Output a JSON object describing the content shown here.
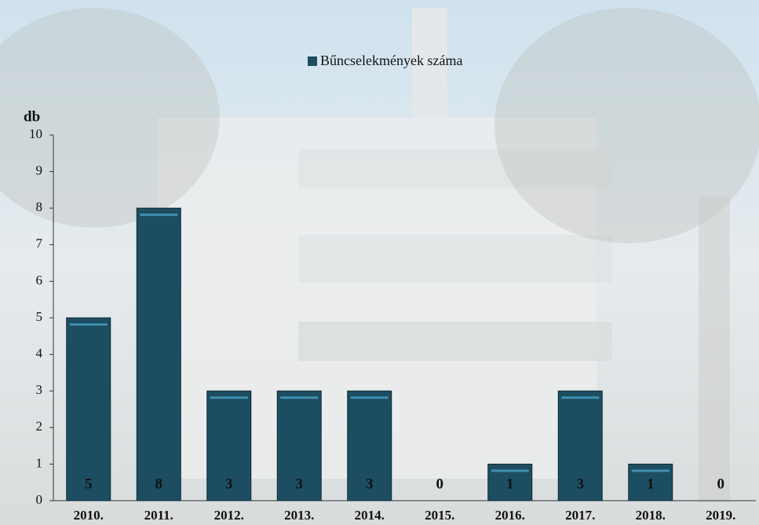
{
  "chart_data": {
    "type": "bar",
    "y_label": "db",
    "categories": [
      "2010.",
      "2011.",
      "2012.",
      "2013.",
      "2014.",
      "2015.",
      "2016.",
      "2017.",
      "2018.",
      "2019."
    ],
    "series": [
      {
        "name": "Bűncselekmények száma",
        "color": "#1d4d60",
        "values": [
          5,
          8,
          3,
          3,
          3,
          0,
          1,
          3,
          1,
          0
        ]
      }
    ],
    "ylim": [
      0,
      10
    ],
    "yticks": [
      0,
      1,
      2,
      3,
      4,
      5,
      6,
      7,
      8,
      9,
      10
    ],
    "legend": "top"
  }
}
